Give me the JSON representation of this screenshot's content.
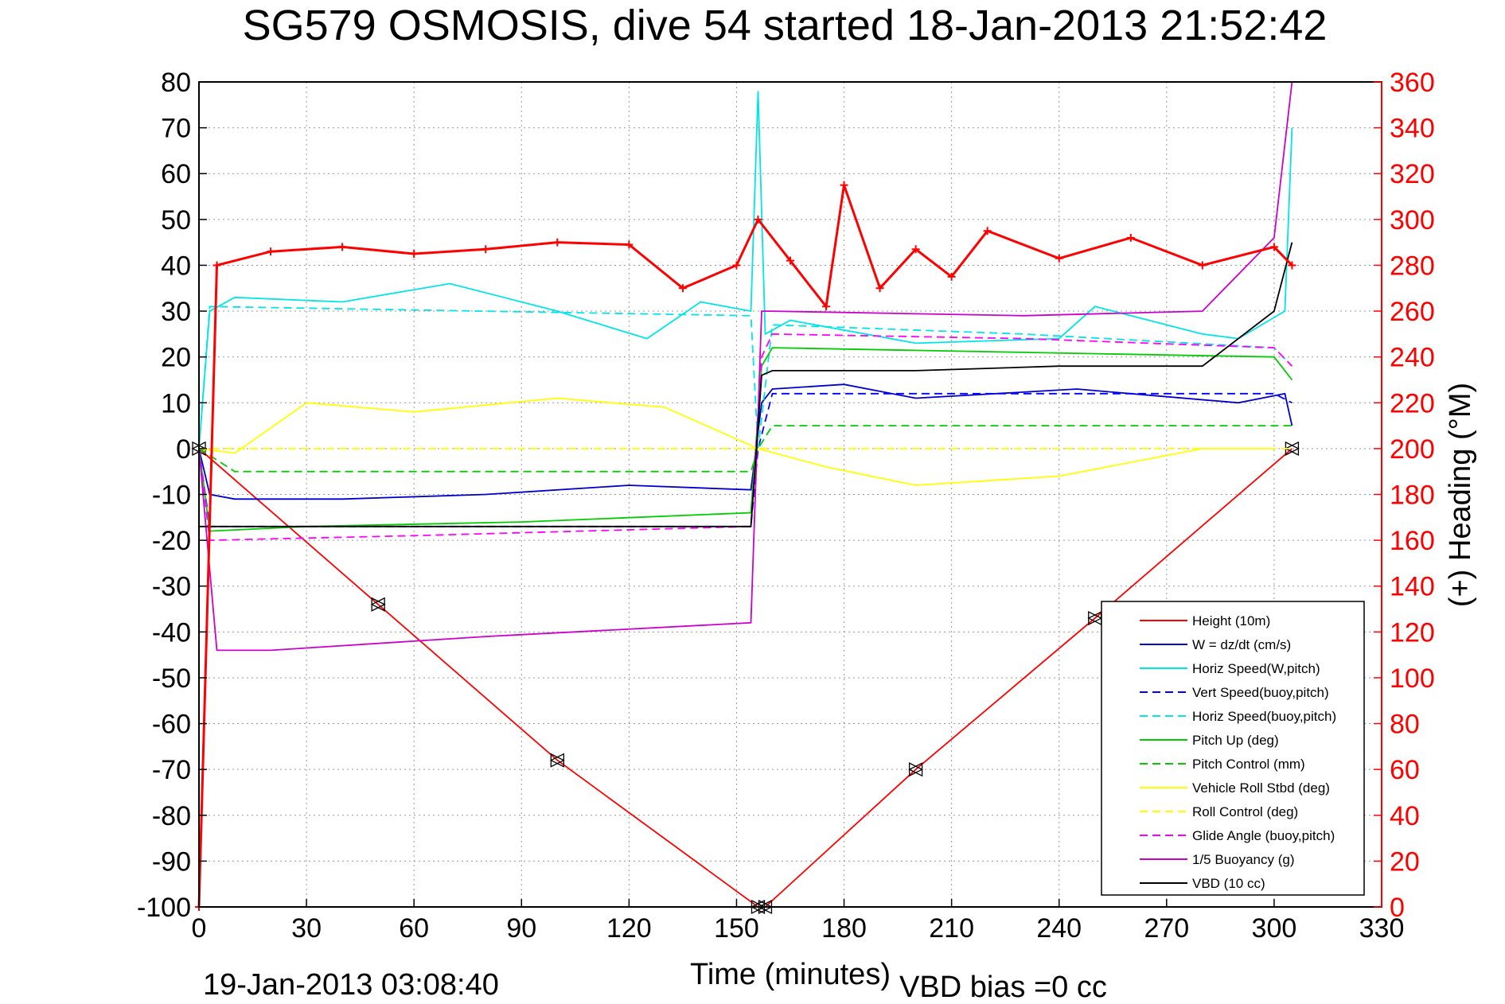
{
  "colors": {
    "height": "#ff0000",
    "w": "#0000cc",
    "horiz_w": "#00e5e5",
    "vert_buoy": "#0000ff",
    "horiz_buoy": "#00e5e5",
    "pitch": "#00cc00",
    "pitch_ctrl": "#00cc00",
    "roll": "#ffff00",
    "roll_ctrl": "#ffff00",
    "glide": "#ff00ff",
    "buoyancy": "#cc00cc",
    "vbd": "#000000",
    "heading": "#ff0000",
    "right_axis": "#ff0000"
  },
  "chart_data": {
    "type": "line",
    "title": "SG579 OSMOSIS, dive 54 started 18-Jan-2013 21:52:42",
    "xlabel": "Time (minutes)",
    "ylabel_right": "(+) Heading (°M)",
    "xlim": [
      0,
      330
    ],
    "ylim": [
      -100,
      80
    ],
    "ylim_right": [
      0,
      360
    ],
    "xticks": [
      "0",
      "30",
      "60",
      "90",
      "120",
      "150",
      "180",
      "210",
      "240",
      "270",
      "300",
      "330"
    ],
    "yticks": [
      "80",
      "70",
      "60",
      "50",
      "40",
      "30",
      "20",
      "10",
      "0",
      "-10",
      "-20",
      "-30",
      "-40",
      "-50",
      "-60",
      "-70",
      "-80",
      "-90",
      "-100"
    ],
    "yticks_right": [
      "360",
      "340",
      "320",
      "300",
      "280",
      "260",
      "240",
      "220",
      "200",
      "180",
      "160",
      "140",
      "120",
      "100",
      "80",
      "60",
      "40",
      "20",
      "0"
    ],
    "grid": true,
    "legend_position": "bottom-right",
    "footer_left": "19-Jan-2013 03:08:40",
    "footer_right": "VBD bias =0 cc",
    "legend": [
      {
        "label": "Height (10m)",
        "style": "solid",
        "color_key": "height"
      },
      {
        "label": "W = dz/dt (cm/s)",
        "style": "solid",
        "color_key": "w"
      },
      {
        "label": "Horiz Speed(W,pitch)",
        "style": "solid",
        "color_key": "horiz_w"
      },
      {
        "label": "Vert Speed(buoy,pitch)",
        "style": "dashed",
        "color_key": "vert_buoy"
      },
      {
        "label": "Horiz Speed(buoy,pitch)",
        "style": "dashed",
        "color_key": "horiz_buoy"
      },
      {
        "label": "Pitch Up (deg)",
        "style": "solid",
        "color_key": "pitch"
      },
      {
        "label": "Pitch Control (mm)",
        "style": "dashed",
        "color_key": "pitch_ctrl"
      },
      {
        "label": "Vehicle Roll Stbd (deg)",
        "style": "solid",
        "color_key": "roll"
      },
      {
        "label": "Roll Control (deg)",
        "style": "dashed",
        "color_key": "roll_ctrl"
      },
      {
        "label": "Glide Angle (buoy,pitch)",
        "style": "dashed",
        "color_key": "glide"
      },
      {
        "label": "1/5 Buoyancy (g)",
        "style": "solid",
        "color_key": "buoyancy"
      },
      {
        "label": "VBD (10 cc)",
        "style": "solid",
        "color_key": "vbd"
      }
    ],
    "series": [
      {
        "name": "Height (10m)",
        "x": [
          0,
          50,
          100,
          156,
          158,
          200,
          250,
          305
        ],
        "y": [
          0,
          -34,
          -68,
          -100,
          -100,
          -70,
          -37,
          0
        ]
      },
      {
        "name": "W = dz/dt (cm/s)",
        "x": [
          0,
          3,
          10,
          40,
          80,
          120,
          154,
          157,
          160,
          180,
          200,
          245,
          260,
          290,
          303,
          305
        ],
        "y": [
          0,
          -10,
          -11,
          -11,
          -10,
          -8,
          -9,
          10,
          13,
          14,
          11,
          13,
          12,
          10,
          12,
          5
        ]
      },
      {
        "name": "Horiz Speed(W,pitch)",
        "x": [
          0,
          3,
          10,
          40,
          70,
          100,
          125,
          140,
          154,
          156,
          158,
          165,
          200,
          240,
          250,
          280,
          290,
          303,
          305
        ],
        "y": [
          0,
          30,
          33,
          32,
          36,
          30,
          24,
          32,
          30,
          78,
          25,
          28,
          23,
          24,
          31,
          25,
          24,
          30,
          70
        ]
      },
      {
        "name": "Vert Speed(buoy,pitch)",
        "x": [
          0,
          3,
          154,
          156,
          160,
          300,
          305
        ],
        "y": [
          0,
          -17,
          -17,
          0,
          12,
          12,
          10
        ]
      },
      {
        "name": "Horiz Speed(buoy,pitch)",
        "x": [
          0,
          3,
          154,
          156,
          160,
          230,
          300,
          305
        ],
        "y": [
          0,
          31,
          29,
          0,
          27,
          25,
          22,
          18
        ]
      },
      {
        "name": "Pitch Up (deg)",
        "x": [
          0,
          3,
          30,
          90,
          154,
          157,
          160,
          230,
          300,
          305
        ],
        "y": [
          0,
          -18,
          -17,
          -16,
          -14,
          18,
          22,
          21,
          20,
          15
        ]
      },
      {
        "name": "Pitch Control (mm)",
        "x": [
          0,
          10,
          154,
          156,
          160,
          305
        ],
        "y": [
          0,
          -5,
          -5,
          0,
          5,
          5
        ]
      },
      {
        "name": "Vehicle Roll Stbd (deg)",
        "x": [
          0,
          10,
          30,
          60,
          100,
          130,
          156,
          175,
          200,
          240,
          280,
          300
        ],
        "y": [
          0,
          -1,
          10,
          8,
          11,
          9,
          0,
          -4,
          -8,
          -6,
          0,
          0
        ]
      },
      {
        "name": "Roll Control (deg)",
        "x": [
          0,
          305
        ],
        "y": [
          0,
          0
        ]
      },
      {
        "name": "Glide Angle (buoy,pitch)",
        "x": [
          0,
          3,
          60,
          154,
          157,
          160,
          230,
          300,
          305
        ],
        "y": [
          0,
          -20,
          -19,
          -17,
          20,
          25,
          24,
          22,
          18
        ]
      },
      {
        "name": "1/5 Buoyancy (g)",
        "x": [
          0,
          5,
          20,
          80,
          154,
          157,
          160,
          230,
          280,
          300,
          305
        ],
        "y": [
          0,
          -44,
          -44,
          -41,
          -38,
          30,
          30,
          29,
          30,
          46,
          80
        ]
      },
      {
        "name": "VBD (10 cc)",
        "x": [
          0,
          154,
          157,
          160,
          200,
          240,
          280,
          300,
          305
        ],
        "y": [
          -17,
          -17,
          16,
          17,
          17,
          18,
          18,
          30,
          45
        ]
      },
      {
        "name": "(+) Heading (°M)",
        "axis": "right",
        "x": [
          0,
          5,
          20,
          40,
          60,
          80,
          100,
          120,
          135,
          150,
          156,
          165,
          175,
          180,
          190,
          200,
          210,
          220,
          240,
          260,
          280,
          300,
          305
        ],
        "y": [
          0,
          280,
          286,
          288,
          285,
          287,
          290,
          289,
          270,
          280,
          300,
          282,
          262,
          315,
          270,
          287,
          275,
          295,
          283,
          292,
          280,
          288,
          280
        ]
      }
    ]
  }
}
